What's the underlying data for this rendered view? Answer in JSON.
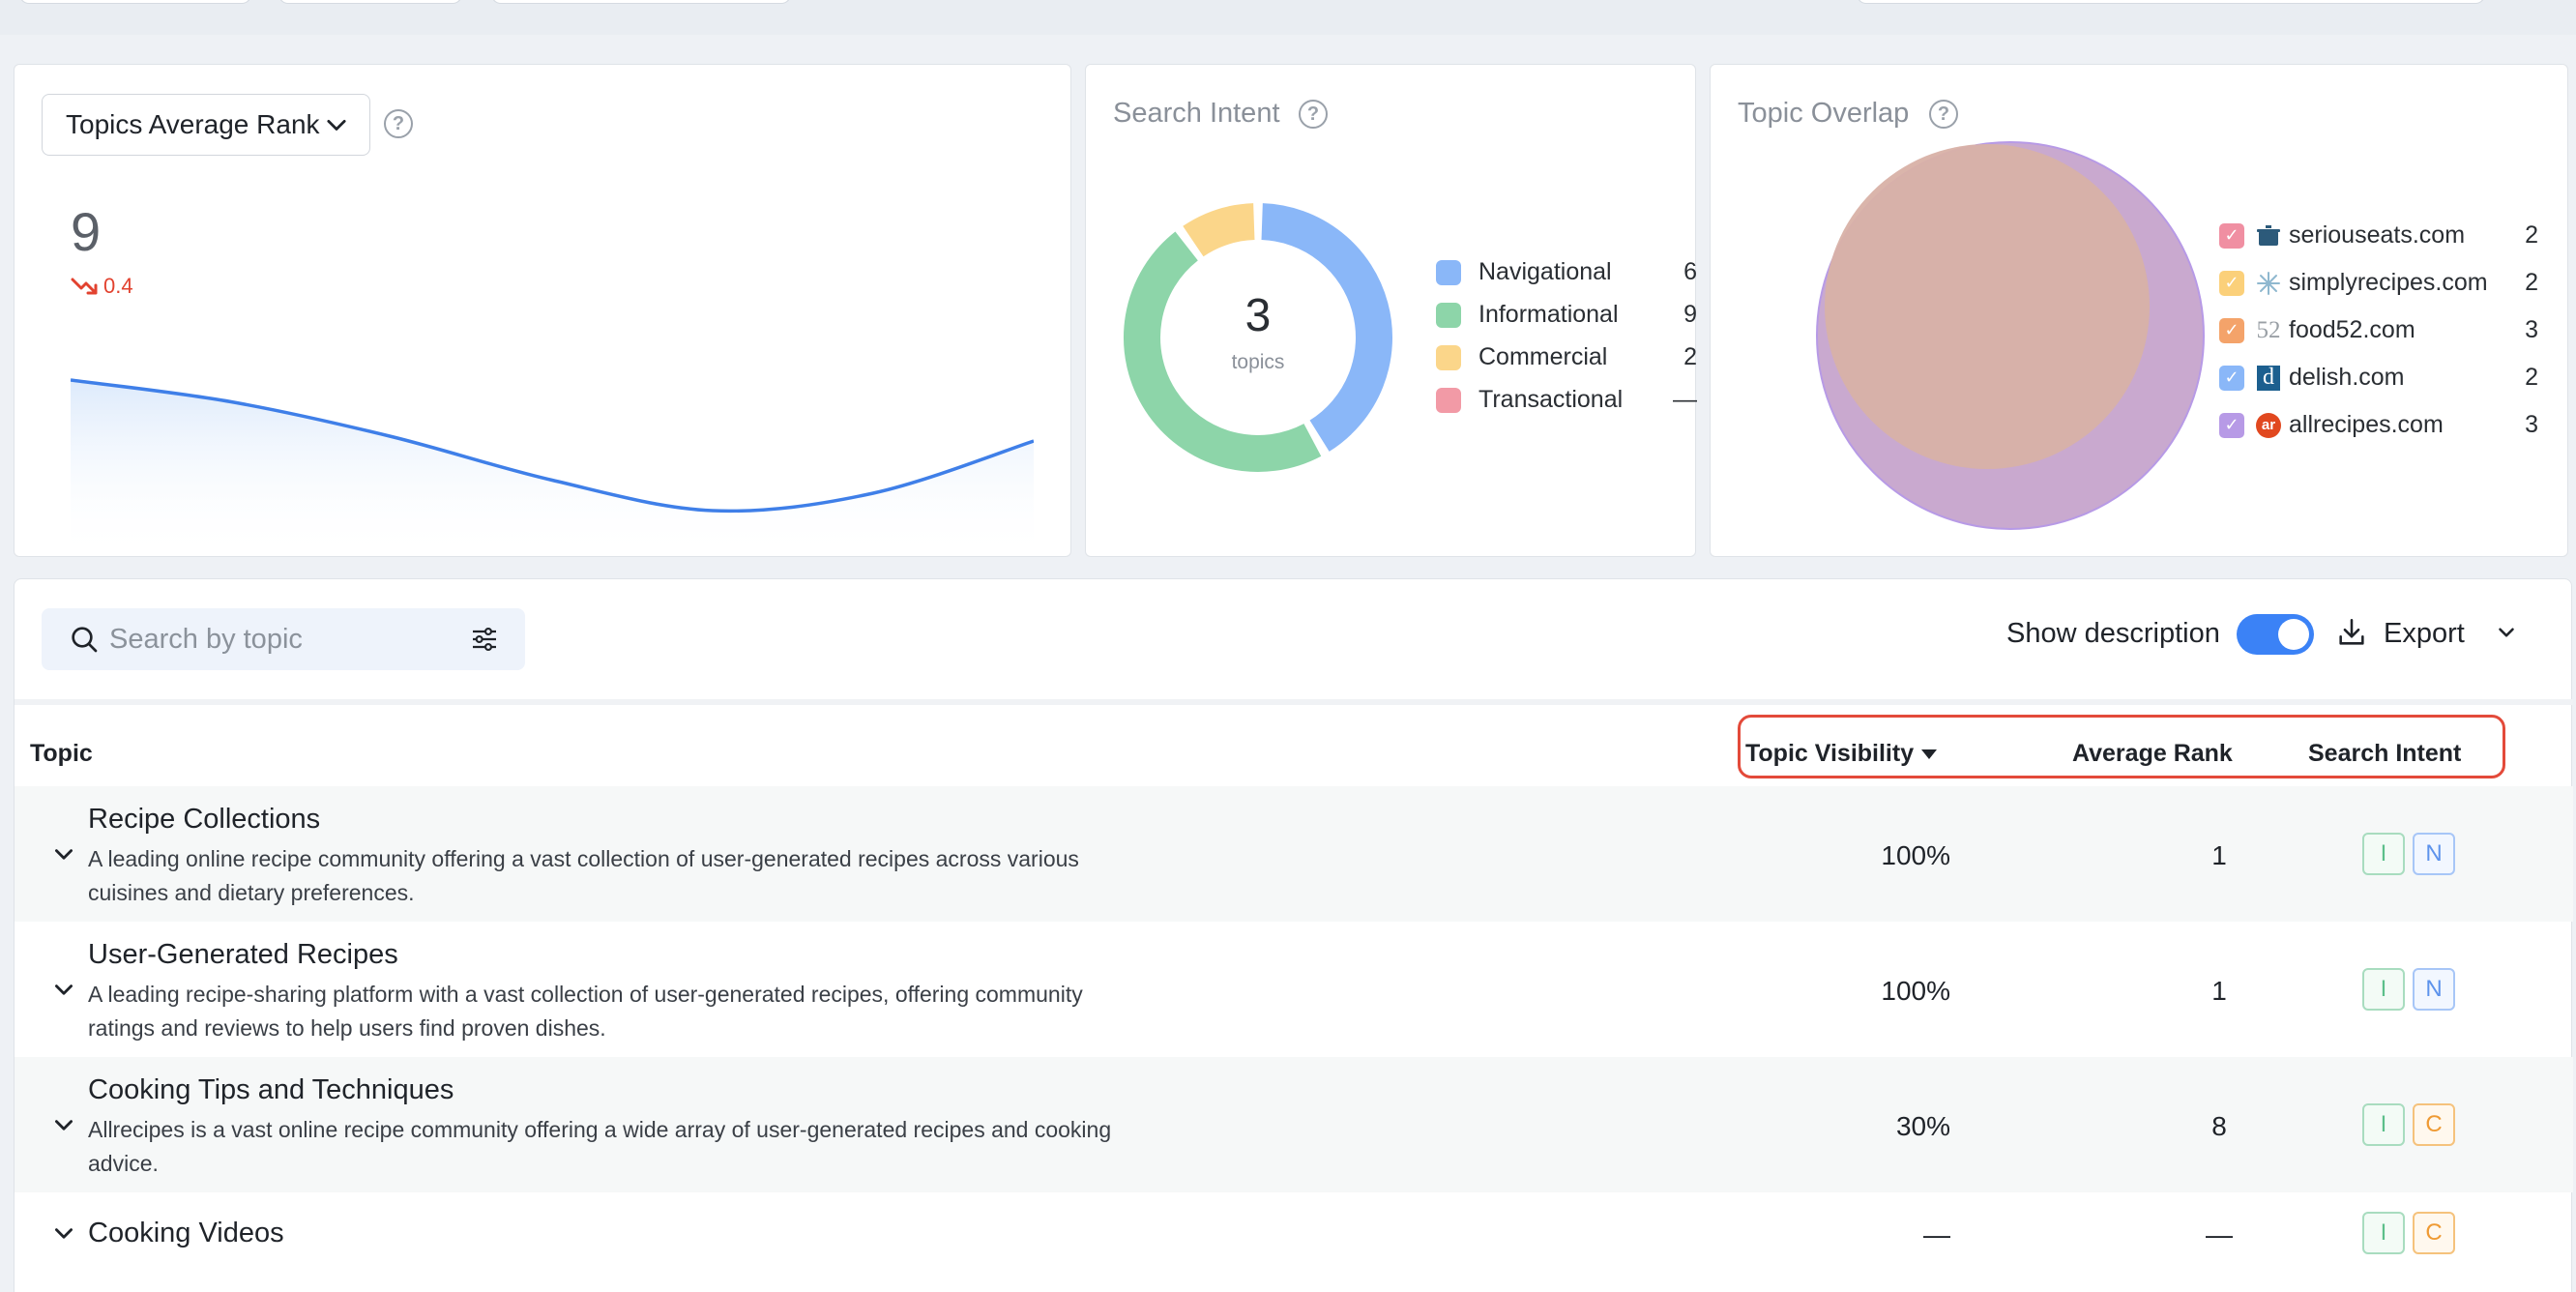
{
  "colors": {
    "navigational": "#8ab7f8",
    "informational": "#8dd5a9",
    "commercial": "#fbd68a",
    "transactional": "#f29aa6",
    "accent": "#3b82f6",
    "alert": "#e34a3a"
  },
  "rank_card": {
    "selector_label": "Topics Average Rank",
    "value": "9",
    "delta": "0.4",
    "trend_icon": "trend-down-icon",
    "sparkline": [
      9.2,
      8.7,
      7.9,
      6.9,
      6.2,
      6.6,
      7.8
    ]
  },
  "intent_card": {
    "title": "Search Intent",
    "center_value": "3",
    "center_label": "topics",
    "legend": [
      {
        "name": "Navigational",
        "count": "6",
        "color": "#8ab7f8"
      },
      {
        "name": "Informational",
        "count": "9",
        "color": "#8dd5a9"
      },
      {
        "name": "Commercial",
        "count": "2",
        "color": "#fbd68a"
      },
      {
        "name": "Transactional",
        "count": "—",
        "color": "#f29aa6"
      }
    ]
  },
  "overlap_card": {
    "title": "Topic Overlap",
    "sites": [
      {
        "domain": "seriouseats.com",
        "count": "2",
        "checkbox_color": "#f08fa2",
        "logo": "pot-icon"
      },
      {
        "domain": "simplyrecipes.com",
        "count": "2",
        "checkbox_color": "#fbd07a",
        "logo": "snowflake-icon"
      },
      {
        "domain": "food52.com",
        "count": "3",
        "checkbox_color": "#f4a36a",
        "logo": "52-logo",
        "logo_text": "52"
      },
      {
        "domain": "delish.com",
        "count": "2",
        "checkbox_color": "#8ab7f8",
        "logo": "d-logo",
        "logo_text": "d"
      },
      {
        "domain": "allrecipes.com",
        "count": "3",
        "checkbox_color": "#b79ae6",
        "logo": "ar-logo",
        "logo_text": "ar"
      }
    ]
  },
  "table": {
    "search_placeholder": "Search by topic",
    "show_description_label": "Show description",
    "show_description_on": true,
    "export_label": "Export",
    "columns": {
      "topic": "Topic",
      "visibility": "Topic Visibility",
      "rank": "Average Rank",
      "intent": "Search Intent"
    },
    "rows": [
      {
        "title": "Recipe Collections",
        "description_1": "A leading online recipe community offering a vast collection of user-generated recipes across various",
        "description_2": "cuisines and dietary preferences.",
        "visibility": "100%",
        "rank": "1",
        "intents": [
          "I",
          "N"
        ]
      },
      {
        "title": "User-Generated Recipes",
        "description_1": "A leading recipe-sharing platform with a vast collection of user-generated recipes, offering community",
        "description_2": "ratings and reviews to help users find proven dishes.",
        "visibility": "100%",
        "rank": "1",
        "intents": [
          "I",
          "N"
        ]
      },
      {
        "title": "Cooking Tips and Techniques",
        "description_1": "Allrecipes is a vast online recipe community offering a wide array of user-generated recipes and cooking",
        "description_2": "advice.",
        "visibility": "30%",
        "rank": "8",
        "intents": [
          "I",
          "C"
        ]
      },
      {
        "title": "Cooking Videos",
        "visibility": "—",
        "rank": "—",
        "intents": [
          "I",
          "C"
        ]
      }
    ]
  }
}
